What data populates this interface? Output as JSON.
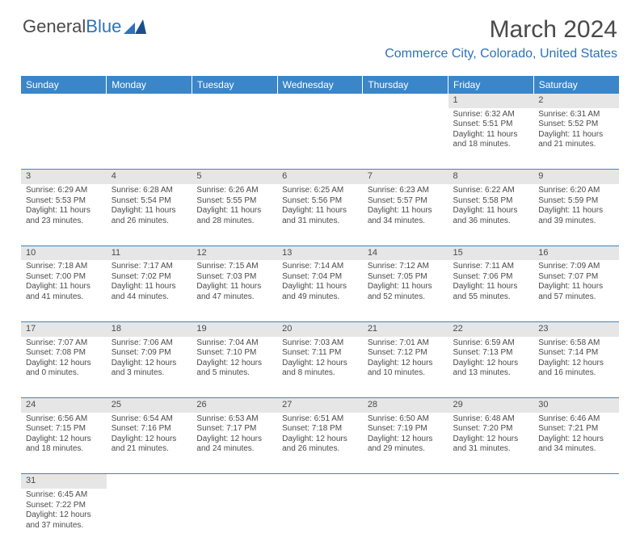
{
  "logo": {
    "text1": "General",
    "text2": "Blue"
  },
  "title": "March 2024",
  "location": "Commerce City, Colorado, United States",
  "colors": {
    "header_bg": "#3a86c8",
    "header_text": "#ffffff",
    "daynum_bg": "#e6e6e6",
    "border": "#3a86c8",
    "accent": "#2e72b8",
    "body_text": "#4a4a4a",
    "page_bg": "#ffffff"
  },
  "weekdays": [
    "Sunday",
    "Monday",
    "Tuesday",
    "Wednesday",
    "Thursday",
    "Friday",
    "Saturday"
  ],
  "weeks": [
    [
      null,
      null,
      null,
      null,
      null,
      {
        "n": "1",
        "sunrise": "6:32 AM",
        "sunset": "5:51 PM",
        "daylight": "11 hours and 18 minutes."
      },
      {
        "n": "2",
        "sunrise": "6:31 AM",
        "sunset": "5:52 PM",
        "daylight": "11 hours and 21 minutes."
      }
    ],
    [
      {
        "n": "3",
        "sunrise": "6:29 AM",
        "sunset": "5:53 PM",
        "daylight": "11 hours and 23 minutes."
      },
      {
        "n": "4",
        "sunrise": "6:28 AM",
        "sunset": "5:54 PM",
        "daylight": "11 hours and 26 minutes."
      },
      {
        "n": "5",
        "sunrise": "6:26 AM",
        "sunset": "5:55 PM",
        "daylight": "11 hours and 28 minutes."
      },
      {
        "n": "6",
        "sunrise": "6:25 AM",
        "sunset": "5:56 PM",
        "daylight": "11 hours and 31 minutes."
      },
      {
        "n": "7",
        "sunrise": "6:23 AM",
        "sunset": "5:57 PM",
        "daylight": "11 hours and 34 minutes."
      },
      {
        "n": "8",
        "sunrise": "6:22 AM",
        "sunset": "5:58 PM",
        "daylight": "11 hours and 36 minutes."
      },
      {
        "n": "9",
        "sunrise": "6:20 AM",
        "sunset": "5:59 PM",
        "daylight": "11 hours and 39 minutes."
      }
    ],
    [
      {
        "n": "10",
        "sunrise": "7:18 AM",
        "sunset": "7:00 PM",
        "daylight": "11 hours and 41 minutes."
      },
      {
        "n": "11",
        "sunrise": "7:17 AM",
        "sunset": "7:02 PM",
        "daylight": "11 hours and 44 minutes."
      },
      {
        "n": "12",
        "sunrise": "7:15 AM",
        "sunset": "7:03 PM",
        "daylight": "11 hours and 47 minutes."
      },
      {
        "n": "13",
        "sunrise": "7:14 AM",
        "sunset": "7:04 PM",
        "daylight": "11 hours and 49 minutes."
      },
      {
        "n": "14",
        "sunrise": "7:12 AM",
        "sunset": "7:05 PM",
        "daylight": "11 hours and 52 minutes."
      },
      {
        "n": "15",
        "sunrise": "7:11 AM",
        "sunset": "7:06 PM",
        "daylight": "11 hours and 55 minutes."
      },
      {
        "n": "16",
        "sunrise": "7:09 AM",
        "sunset": "7:07 PM",
        "daylight": "11 hours and 57 minutes."
      }
    ],
    [
      {
        "n": "17",
        "sunrise": "7:07 AM",
        "sunset": "7:08 PM",
        "daylight": "12 hours and 0 minutes."
      },
      {
        "n": "18",
        "sunrise": "7:06 AM",
        "sunset": "7:09 PM",
        "daylight": "12 hours and 3 minutes."
      },
      {
        "n": "19",
        "sunrise": "7:04 AM",
        "sunset": "7:10 PM",
        "daylight": "12 hours and 5 minutes."
      },
      {
        "n": "20",
        "sunrise": "7:03 AM",
        "sunset": "7:11 PM",
        "daylight": "12 hours and 8 minutes."
      },
      {
        "n": "21",
        "sunrise": "7:01 AM",
        "sunset": "7:12 PM",
        "daylight": "12 hours and 10 minutes."
      },
      {
        "n": "22",
        "sunrise": "6:59 AM",
        "sunset": "7:13 PM",
        "daylight": "12 hours and 13 minutes."
      },
      {
        "n": "23",
        "sunrise": "6:58 AM",
        "sunset": "7:14 PM",
        "daylight": "12 hours and 16 minutes."
      }
    ],
    [
      {
        "n": "24",
        "sunrise": "6:56 AM",
        "sunset": "7:15 PM",
        "daylight": "12 hours and 18 minutes."
      },
      {
        "n": "25",
        "sunrise": "6:54 AM",
        "sunset": "7:16 PM",
        "daylight": "12 hours and 21 minutes."
      },
      {
        "n": "26",
        "sunrise": "6:53 AM",
        "sunset": "7:17 PM",
        "daylight": "12 hours and 24 minutes."
      },
      {
        "n": "27",
        "sunrise": "6:51 AM",
        "sunset": "7:18 PM",
        "daylight": "12 hours and 26 minutes."
      },
      {
        "n": "28",
        "sunrise": "6:50 AM",
        "sunset": "7:19 PM",
        "daylight": "12 hours and 29 minutes."
      },
      {
        "n": "29",
        "sunrise": "6:48 AM",
        "sunset": "7:20 PM",
        "daylight": "12 hours and 31 minutes."
      },
      {
        "n": "30",
        "sunrise": "6:46 AM",
        "sunset": "7:21 PM",
        "daylight": "12 hours and 34 minutes."
      }
    ],
    [
      {
        "n": "31",
        "sunrise": "6:45 AM",
        "sunset": "7:22 PM",
        "daylight": "12 hours and 37 minutes."
      },
      null,
      null,
      null,
      null,
      null,
      null
    ]
  ],
  "labels": {
    "sunrise": "Sunrise:",
    "sunset": "Sunset:",
    "daylight": "Daylight:"
  }
}
